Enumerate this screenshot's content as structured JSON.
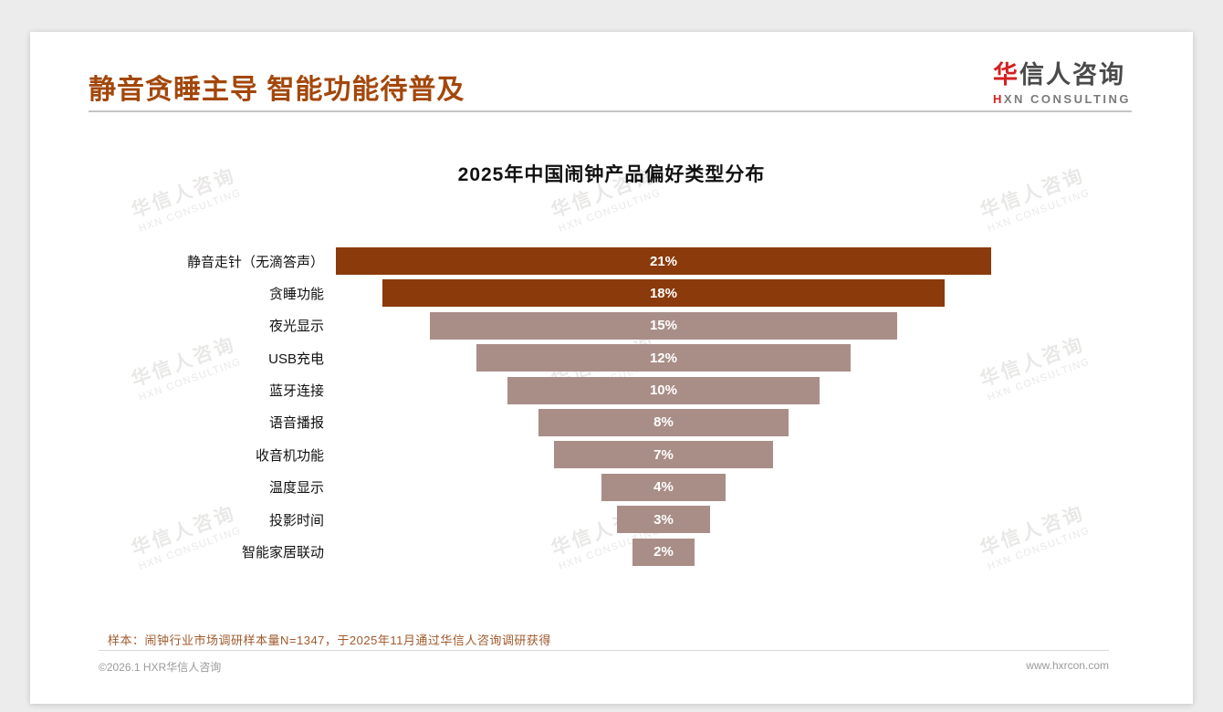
{
  "page": {
    "header": {
      "title": "静音贪睡主导 智能功能待普及",
      "logo": {
        "cn_first": "华",
        "cn_rest": "信人咨询",
        "en_first": "H",
        "en_rest": "XN CONSULTING"
      }
    },
    "watermark": {
      "line1": "华信人咨询",
      "line2": "HXN CONSULTING"
    },
    "note": "样本：闹钟行业市场调研样本量N=1347，于2025年11月通过华信人咨询调研获得",
    "footer": {
      "left": "©2026.1 HXR华信人咨询",
      "right": "www.hxrcon.com"
    }
  },
  "chart_data": {
    "type": "bar",
    "variant": "horizontal-centered-funnel",
    "title": "2025年中国闹钟产品偏好类型分布",
    "categories": [
      "静音走针（无滴答声）",
      "贪睡功能",
      "夜光显示",
      "USB充电",
      "蓝牙连接",
      "语音播报",
      "收音机功能",
      "温度显示",
      "投影时间",
      "智能家居联动"
    ],
    "values": [
      21,
      18,
      15,
      12,
      10,
      8,
      7,
      4,
      3,
      2
    ],
    "value_labels": [
      "21%",
      "18%",
      "15%",
      "12%",
      "10%",
      "8%",
      "7%",
      "4%",
      "3%",
      "2%"
    ],
    "unit": "%",
    "xlim": [
      0,
      21
    ],
    "grid": false,
    "legend": "none",
    "bar_value_label_position": "inside-center",
    "colors": {
      "highlight": "#8B3A0B",
      "normal": "#A98E88",
      "highlight_count": 2,
      "bar_label_color": "#FFFFFF"
    }
  }
}
